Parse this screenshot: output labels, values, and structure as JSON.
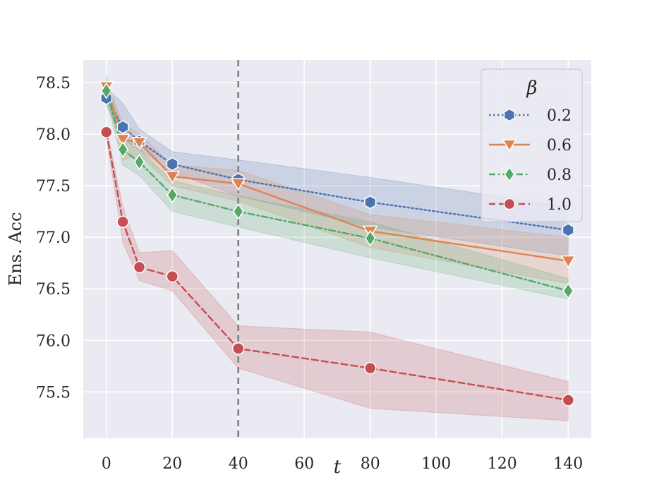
{
  "chart_data": {
    "type": "line",
    "xlabel": "t",
    "ylabel": "Ens. Acc",
    "xlim": [
      -7,
      147
    ],
    "ylim": [
      75.05,
      78.72
    ],
    "xticks": [
      0,
      20,
      40,
      60,
      80,
      100,
      120,
      140
    ],
    "yticks": [
      75.5,
      76.0,
      76.5,
      77.0,
      77.5,
      78.0,
      78.5
    ],
    "ytick_labels": [
      "75.5",
      "76.0",
      "76.5",
      "77.0",
      "77.5",
      "78.0",
      "78.5"
    ],
    "grid": true,
    "vline": {
      "x": 40,
      "color": "#808080",
      "style": "dashed"
    },
    "legend": {
      "title": "β",
      "position": "top-right"
    },
    "x": [
      0,
      5,
      10,
      20,
      40,
      80,
      140
    ],
    "series": [
      {
        "name": "0.2",
        "color": "#4c72b0",
        "linestyle": "dotted",
        "marker": "hexagon",
        "values": [
          78.35,
          78.07,
          77.93,
          77.71,
          77.56,
          77.34,
          77.07
        ],
        "lower": [
          78.28,
          77.95,
          77.85,
          77.63,
          77.4,
          77.1,
          76.82
        ],
        "upper": [
          78.45,
          78.3,
          78.05,
          77.83,
          77.75,
          77.58,
          77.3
        ]
      },
      {
        "name": "0.6",
        "color": "#dd8452",
        "linestyle": "solid",
        "marker": "triangle-down",
        "values": [
          78.46,
          77.95,
          77.92,
          77.59,
          77.52,
          77.06,
          76.77
        ],
        "lower": [
          78.4,
          77.75,
          77.8,
          77.5,
          77.35,
          76.9,
          76.55
        ],
        "upper": [
          78.52,
          78.1,
          78.0,
          77.7,
          77.65,
          77.22,
          77.0
        ]
      },
      {
        "name": "0.8",
        "color": "#55a868",
        "linestyle": "dashdot",
        "marker": "diamond",
        "values": [
          78.42,
          77.85,
          77.73,
          77.41,
          77.25,
          76.99,
          76.48
        ],
        "lower": [
          78.35,
          77.7,
          77.6,
          77.25,
          77.1,
          76.8,
          76.4
        ],
        "upper": [
          78.57,
          78.0,
          77.85,
          77.55,
          77.4,
          77.15,
          76.6
        ]
      },
      {
        "name": "1.0",
        "color": "#c44e52",
        "linestyle": "dashed",
        "marker": "circle",
        "values": [
          78.02,
          77.15,
          76.71,
          76.62,
          75.92,
          75.73,
          75.42
        ],
        "lower": [
          77.98,
          76.95,
          76.58,
          76.48,
          75.73,
          75.34,
          75.22
        ],
        "upper": [
          78.06,
          77.3,
          76.85,
          76.87,
          76.14,
          76.08,
          75.6
        ]
      }
    ]
  }
}
